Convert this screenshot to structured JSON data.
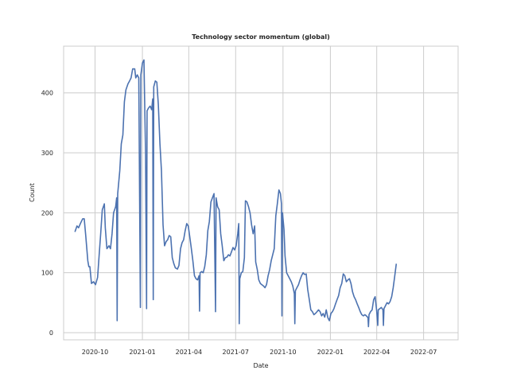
{
  "chart_data": {
    "type": "line",
    "title": "Technology sector momentum (global)",
    "xlabel": "Date",
    "ylabel": "Count",
    "grid": true,
    "xlim": [
      "2020-08-01",
      "2022-09-06"
    ],
    "ylim": [
      -12,
      478
    ],
    "x_ticks": [
      {
        "date": "2020-10-01",
        "label": "2020-10"
      },
      {
        "date": "2021-01-01",
        "label": "2021-01"
      },
      {
        "date": "2021-04-01",
        "label": "2021-04"
      },
      {
        "date": "2021-07-01",
        "label": "2021-07"
      },
      {
        "date": "2021-10-01",
        "label": "2021-10"
      },
      {
        "date": "2022-01-01",
        "label": "2022-01"
      },
      {
        "date": "2022-04-01",
        "label": "2022-04"
      },
      {
        "date": "2022-07-01",
        "label": "2022-07"
      }
    ],
    "y_ticks": [
      0,
      100,
      200,
      300,
      400
    ],
    "series": [
      {
        "color": "#4c72b0",
        "points": [
          [
            "2020-08-23",
            168
          ],
          [
            "2020-08-27",
            178
          ],
          [
            "2020-08-30",
            175
          ],
          [
            "2020-09-03",
            183
          ],
          [
            "2020-09-07",
            190
          ],
          [
            "2020-09-10",
            190
          ],
          [
            "2020-09-13",
            162
          ],
          [
            "2020-09-17",
            120
          ],
          [
            "2020-09-19",
            110
          ],
          [
            "2020-09-21",
            110
          ],
          [
            "2020-09-24",
            82
          ],
          [
            "2020-09-28",
            85
          ],
          [
            "2020-10-02",
            80
          ],
          [
            "2020-10-06",
            92
          ],
          [
            "2020-10-09",
            130
          ],
          [
            "2020-10-12",
            165
          ],
          [
            "2020-10-15",
            205
          ],
          [
            "2020-10-19",
            215
          ],
          [
            "2020-10-21",
            175
          ],
          [
            "2020-10-24",
            140
          ],
          [
            "2020-10-28",
            145
          ],
          [
            "2020-10-31",
            140
          ],
          [
            "2020-11-03",
            165
          ],
          [
            "2020-11-06",
            200
          ],
          [
            "2020-11-10",
            210
          ],
          [
            "2020-11-12",
            225
          ],
          [
            "2020-11-13",
            20
          ],
          [
            "2020-11-14",
            232
          ],
          [
            "2020-11-18",
            270
          ],
          [
            "2020-11-21",
            315
          ],
          [
            "2020-11-24",
            330
          ],
          [
            "2020-11-27",
            385
          ],
          [
            "2020-11-30",
            405
          ],
          [
            "2020-12-04",
            415
          ],
          [
            "2020-12-07",
            420
          ],
          [
            "2020-12-10",
            425
          ],
          [
            "2020-12-13",
            440
          ],
          [
            "2020-12-17",
            440
          ],
          [
            "2020-12-19",
            425
          ],
          [
            "2020-12-22",
            430
          ],
          [
            "2020-12-25",
            425
          ],
          [
            "2020-12-28",
            42
          ],
          [
            "2020-12-29",
            430
          ],
          [
            "2021-01-01",
            450
          ],
          [
            "2021-01-04",
            455
          ],
          [
            "2021-01-07",
            300
          ],
          [
            "2021-01-09",
            40
          ],
          [
            "2021-01-10",
            370
          ],
          [
            "2021-01-13",
            375
          ],
          [
            "2021-01-16",
            378
          ],
          [
            "2021-01-19",
            372
          ],
          [
            "2021-01-21",
            390
          ],
          [
            "2021-01-22",
            55
          ],
          [
            "2021-01-23",
            410
          ],
          [
            "2021-01-26",
            420
          ],
          [
            "2021-01-29",
            418
          ],
          [
            "2021-02-01",
            380
          ],
          [
            "2021-02-04",
            315
          ],
          [
            "2021-02-07",
            270
          ],
          [
            "2021-02-10",
            180
          ],
          [
            "2021-02-13",
            145
          ],
          [
            "2021-02-16",
            152
          ],
          [
            "2021-02-19",
            155
          ],
          [
            "2021-02-22",
            162
          ],
          [
            "2021-02-25",
            160
          ],
          [
            "2021-02-28",
            125
          ],
          [
            "2021-03-03",
            115
          ],
          [
            "2021-03-06",
            108
          ],
          [
            "2021-03-10",
            106
          ],
          [
            "2021-03-13",
            112
          ],
          [
            "2021-03-16",
            140
          ],
          [
            "2021-03-19",
            150
          ],
          [
            "2021-03-22",
            155
          ],
          [
            "2021-03-25",
            170
          ],
          [
            "2021-03-28",
            182
          ],
          [
            "2021-03-31",
            178
          ],
          [
            "2021-04-03",
            160
          ],
          [
            "2021-04-06",
            140
          ],
          [
            "2021-04-09",
            120
          ],
          [
            "2021-04-12",
            95
          ],
          [
            "2021-04-15",
            90
          ],
          [
            "2021-04-18",
            88
          ],
          [
            "2021-04-21",
            95
          ],
          [
            "2021-04-22",
            36
          ],
          [
            "2021-04-23",
            100
          ],
          [
            "2021-04-26",
            102
          ],
          [
            "2021-04-29",
            100
          ],
          [
            "2021-05-02",
            110
          ],
          [
            "2021-05-05",
            130
          ],
          [
            "2021-05-08",
            170
          ],
          [
            "2021-05-11",
            185
          ],
          [
            "2021-05-14",
            218
          ],
          [
            "2021-05-17",
            225
          ],
          [
            "2021-05-20",
            232
          ],
          [
            "2021-05-23",
            35
          ],
          [
            "2021-05-24",
            225
          ],
          [
            "2021-05-27",
            210
          ],
          [
            "2021-05-30",
            205
          ],
          [
            "2021-06-02",
            165
          ],
          [
            "2021-06-05",
            145
          ],
          [
            "2021-06-08",
            120
          ],
          [
            "2021-06-11",
            125
          ],
          [
            "2021-06-14",
            126
          ],
          [
            "2021-06-17",
            130
          ],
          [
            "2021-06-20",
            128
          ],
          [
            "2021-06-23",
            135
          ],
          [
            "2021-06-26",
            142
          ],
          [
            "2021-06-29",
            138
          ],
          [
            "2021-07-02",
            145
          ],
          [
            "2021-07-05",
            165
          ],
          [
            "2021-07-07",
            182
          ],
          [
            "2021-07-08",
            15
          ],
          [
            "2021-07-09",
            90
          ],
          [
            "2021-07-12",
            100
          ],
          [
            "2021-07-15",
            102
          ],
          [
            "2021-07-18",
            125
          ],
          [
            "2021-07-20",
            220
          ],
          [
            "2021-07-23",
            218
          ],
          [
            "2021-07-26",
            210
          ],
          [
            "2021-07-29",
            200
          ],
          [
            "2021-08-01",
            180
          ],
          [
            "2021-08-04",
            165
          ],
          [
            "2021-08-07",
            178
          ],
          [
            "2021-08-09",
            118
          ],
          [
            "2021-08-12",
            105
          ],
          [
            "2021-08-15",
            88
          ],
          [
            "2021-08-18",
            82
          ],
          [
            "2021-08-21",
            80
          ],
          [
            "2021-08-24",
            78
          ],
          [
            "2021-08-27",
            75
          ],
          [
            "2021-08-30",
            80
          ],
          [
            "2021-09-02",
            95
          ],
          [
            "2021-09-05",
            105
          ],
          [
            "2021-09-08",
            120
          ],
          [
            "2021-09-11",
            130
          ],
          [
            "2021-09-14",
            140
          ],
          [
            "2021-09-17",
            195
          ],
          [
            "2021-09-20",
            215
          ],
          [
            "2021-09-23",
            238
          ],
          [
            "2021-09-26",
            232
          ],
          [
            "2021-09-28",
            215
          ],
          [
            "2021-09-29",
            28
          ],
          [
            "2021-09-30",
            200
          ],
          [
            "2021-10-03",
            172
          ],
          [
            "2021-10-05",
            128
          ],
          [
            "2021-10-08",
            100
          ],
          [
            "2021-10-11",
            95
          ],
          [
            "2021-10-14",
            90
          ],
          [
            "2021-10-17",
            85
          ],
          [
            "2021-10-20",
            78
          ],
          [
            "2021-10-23",
            65
          ],
          [
            "2021-10-24",
            15
          ],
          [
            "2021-10-25",
            70
          ],
          [
            "2021-10-28",
            75
          ],
          [
            "2021-10-31",
            80
          ],
          [
            "2021-11-03",
            88
          ],
          [
            "2021-11-06",
            95
          ],
          [
            "2021-11-09",
            100
          ],
          [
            "2021-11-12",
            97
          ],
          [
            "2021-11-15",
            98
          ],
          [
            "2021-11-18",
            72
          ],
          [
            "2021-11-21",
            55
          ],
          [
            "2021-11-24",
            38
          ],
          [
            "2021-11-27",
            35
          ],
          [
            "2021-11-30",
            30
          ],
          [
            "2021-12-03",
            32
          ],
          [
            "2021-12-06",
            35
          ],
          [
            "2021-12-09",
            38
          ],
          [
            "2021-12-12",
            35
          ],
          [
            "2021-12-15",
            28
          ],
          [
            "2021-12-18",
            32
          ],
          [
            "2021-12-21",
            26
          ],
          [
            "2021-12-24",
            38
          ],
          [
            "2021-12-27",
            25
          ],
          [
            "2021-12-30",
            20
          ],
          [
            "2022-01-02",
            32
          ],
          [
            "2022-01-05",
            35
          ],
          [
            "2022-01-08",
            40
          ],
          [
            "2022-01-11",
            48
          ],
          [
            "2022-01-14",
            55
          ],
          [
            "2022-01-17",
            62
          ],
          [
            "2022-01-20",
            75
          ],
          [
            "2022-01-23",
            82
          ],
          [
            "2022-01-26",
            98
          ],
          [
            "2022-01-29",
            95
          ],
          [
            "2022-02-01",
            85
          ],
          [
            "2022-02-04",
            88
          ],
          [
            "2022-02-07",
            90
          ],
          [
            "2022-02-10",
            82
          ],
          [
            "2022-02-13",
            68
          ],
          [
            "2022-02-16",
            60
          ],
          [
            "2022-02-19",
            55
          ],
          [
            "2022-02-22",
            48
          ],
          [
            "2022-02-25",
            42
          ],
          [
            "2022-02-28",
            35
          ],
          [
            "2022-03-03",
            30
          ],
          [
            "2022-03-06",
            28
          ],
          [
            "2022-03-09",
            30
          ],
          [
            "2022-03-12",
            28
          ],
          [
            "2022-03-15",
            25
          ],
          [
            "2022-03-16",
            10
          ],
          [
            "2022-03-17",
            30
          ],
          [
            "2022-03-20",
            35
          ],
          [
            "2022-03-23",
            38
          ],
          [
            "2022-03-26",
            55
          ],
          [
            "2022-03-29",
            60
          ],
          [
            "2022-04-01",
            35
          ],
          [
            "2022-04-03",
            12
          ],
          [
            "2022-04-04",
            38
          ],
          [
            "2022-04-07",
            40
          ],
          [
            "2022-04-10",
            42
          ],
          [
            "2022-04-13",
            38
          ],
          [
            "2022-04-14",
            12
          ],
          [
            "2022-04-15",
            40
          ],
          [
            "2022-04-18",
            45
          ],
          [
            "2022-04-21",
            50
          ],
          [
            "2022-04-24",
            48
          ],
          [
            "2022-04-27",
            52
          ],
          [
            "2022-04-30",
            60
          ],
          [
            "2022-05-03",
            75
          ],
          [
            "2022-05-06",
            95
          ],
          [
            "2022-05-09",
            115
          ]
        ]
      }
    ]
  }
}
